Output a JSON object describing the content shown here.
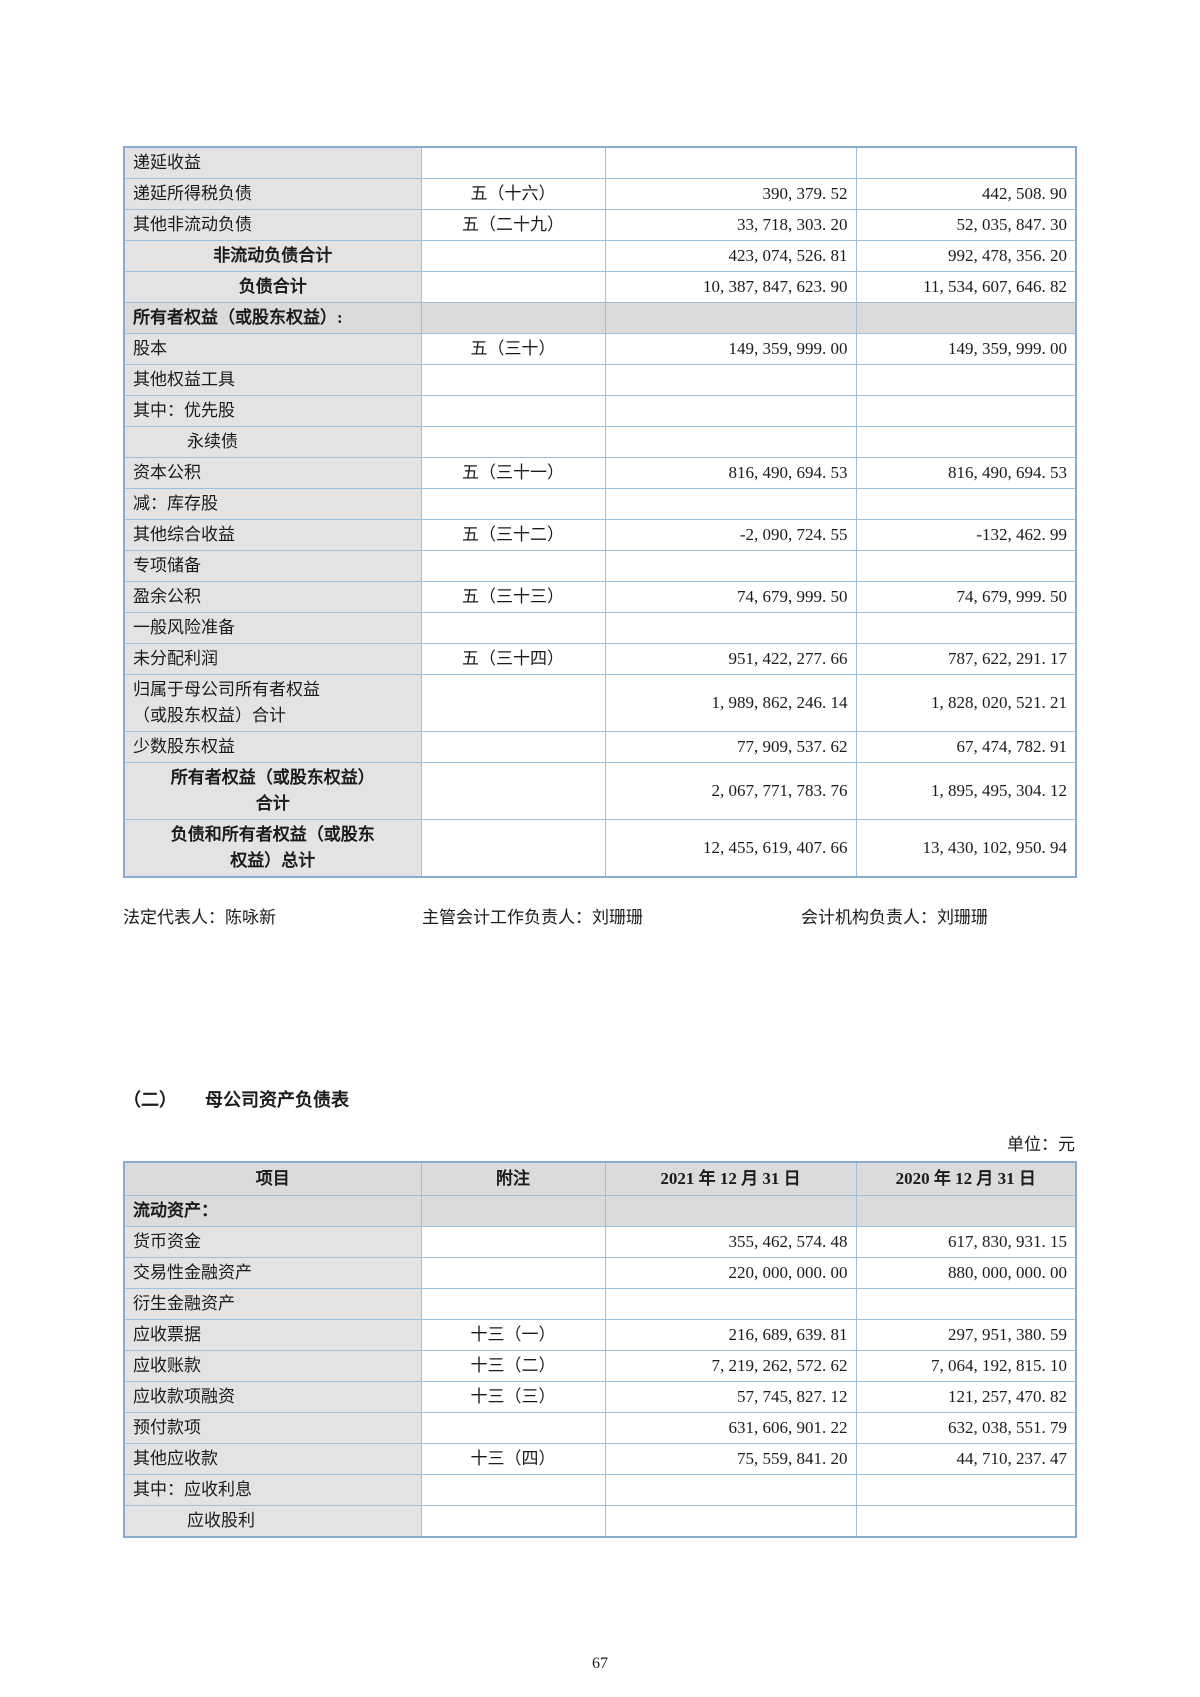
{
  "table1": {
    "rows": [
      {
        "item": "递延收益",
        "note": "",
        "y2021": "",
        "y2020": "",
        "style": "normal"
      },
      {
        "item": "递延所得税负债",
        "note": "五（十六）",
        "y2021": "390, 379. 52",
        "y2020": "442, 508. 90",
        "style": "normal"
      },
      {
        "item": "其他非流动负债",
        "note": "五（二十九）",
        "y2021": "33, 718, 303. 20",
        "y2020": "52, 035, 847. 30",
        "style": "normal"
      },
      {
        "item": "非流动负债合计",
        "note": "",
        "y2021": "423, 074, 526. 81",
        "y2020": "992, 478, 356. 20",
        "style": "total"
      },
      {
        "item": "负债合计",
        "note": "",
        "y2021": "10, 387, 847, 623. 90",
        "y2020": "11, 534, 607, 646. 82",
        "style": "total"
      },
      {
        "item": "所有者权益（或股东权益）:",
        "note": "",
        "y2021": "",
        "y2020": "",
        "style": "section"
      },
      {
        "item": "股本",
        "note": "五（三十）",
        "y2021": "149, 359, 999. 00",
        "y2020": "149, 359, 999. 00",
        "style": "normal"
      },
      {
        "item": "其他权益工具",
        "note": "",
        "y2021": "",
        "y2020": "",
        "style": "normal"
      },
      {
        "item": "其中：优先股",
        "note": "",
        "y2021": "",
        "y2020": "",
        "style": "normal"
      },
      {
        "item": "永续债",
        "note": "",
        "y2021": "",
        "y2020": "",
        "style": "sub"
      },
      {
        "item": "资本公积",
        "note": "五（三十一）",
        "y2021": "816, 490, 694. 53",
        "y2020": "816, 490, 694. 53",
        "style": "normal"
      },
      {
        "item": "减：库存股",
        "note": "",
        "y2021": "",
        "y2020": "",
        "style": "normal"
      },
      {
        "item": "其他综合收益",
        "note": "五（三十二）",
        "y2021": "-2, 090, 724. 55",
        "y2020": "-132, 462. 99",
        "style": "normal"
      },
      {
        "item": "专项储备",
        "note": "",
        "y2021": "",
        "y2020": "",
        "style": "normal"
      },
      {
        "item": "盈余公积",
        "note": "五（三十三）",
        "y2021": "74, 679, 999. 50",
        "y2020": "74, 679, 999. 50",
        "style": "normal"
      },
      {
        "item": "一般风险准备",
        "note": "",
        "y2021": "",
        "y2020": "",
        "style": "normal"
      },
      {
        "item": "未分配利润",
        "note": "五（三十四）",
        "y2021": "951, 422, 277. 66",
        "y2020": "787, 622, 291. 17",
        "style": "normal"
      },
      {
        "item": "归属于母公司所有者权益\n（或股东权益）合计",
        "note": "",
        "y2021": "1, 989, 862, 246. 14",
        "y2020": "1, 828, 020, 521. 21",
        "style": "normal"
      },
      {
        "item": "少数股东权益",
        "note": "",
        "y2021": "77, 909, 537. 62",
        "y2020": "67, 474, 782. 91",
        "style": "normal"
      },
      {
        "item": "所有者权益（或股东权益）\n合计",
        "note": "",
        "y2021": "2, 067, 771, 783. 76",
        "y2020": "1, 895, 495, 304. 12",
        "style": "total"
      },
      {
        "item": "负债和所有者权益（或股东\n权益）总计",
        "note": "",
        "y2021": "12, 455, 619, 407. 66",
        "y2020": "13, 430, 102, 950. 94",
        "style": "total"
      }
    ]
  },
  "signature": {
    "legal_rep": "法定代表人：陈咏新",
    "chief_accounting": "主管会计工作负责人：刘珊珊",
    "accounting_dept": "会计机构负责人：刘珊珊"
  },
  "section2": {
    "number": "（二）",
    "title": "母公司资产负债表",
    "unit": "单位：元"
  },
  "table2": {
    "headers": [
      "项目",
      "附注",
      "2021 年 12 月 31 日",
      "2020 年 12 月 31 日"
    ],
    "rows": [
      {
        "item": "流动资产：",
        "note": "",
        "y2021": "",
        "y2020": "",
        "style": "section"
      },
      {
        "item": "货币资金",
        "note": "",
        "y2021": "355, 462, 574. 48",
        "y2020": "617, 830, 931. 15",
        "style": "normal"
      },
      {
        "item": "交易性金融资产",
        "note": "",
        "y2021": "220, 000, 000. 00",
        "y2020": "880, 000, 000. 00",
        "style": "normal"
      },
      {
        "item": "衍生金融资产",
        "note": "",
        "y2021": "",
        "y2020": "",
        "style": "normal"
      },
      {
        "item": "应收票据",
        "note": "十三（一）",
        "y2021": "216, 689, 639. 81",
        "y2020": "297, 951, 380. 59",
        "style": "normal"
      },
      {
        "item": "应收账款",
        "note": "十三（二）",
        "y2021": "7, 219, 262, 572. 62",
        "y2020": "7, 064, 192, 815. 10",
        "style": "normal"
      },
      {
        "item": "应收款项融资",
        "note": "十三（三）",
        "y2021": "57, 745, 827. 12",
        "y2020": "121, 257, 470. 82",
        "style": "normal"
      },
      {
        "item": "预付款项",
        "note": "",
        "y2021": "631, 606, 901. 22",
        "y2020": "632, 038, 551. 79",
        "style": "normal"
      },
      {
        "item": "其他应收款",
        "note": "十三（四）",
        "y2021": "75, 559, 841. 20",
        "y2020": "44, 710, 237. 47",
        "style": "normal"
      },
      {
        "item": "其中：应收利息",
        "note": "",
        "y2021": "",
        "y2020": "",
        "style": "normal"
      },
      {
        "item": "应收股利",
        "note": "",
        "y2021": "",
        "y2020": "",
        "style": "sub"
      }
    ]
  },
  "footer": {
    "page_number": "67"
  }
}
